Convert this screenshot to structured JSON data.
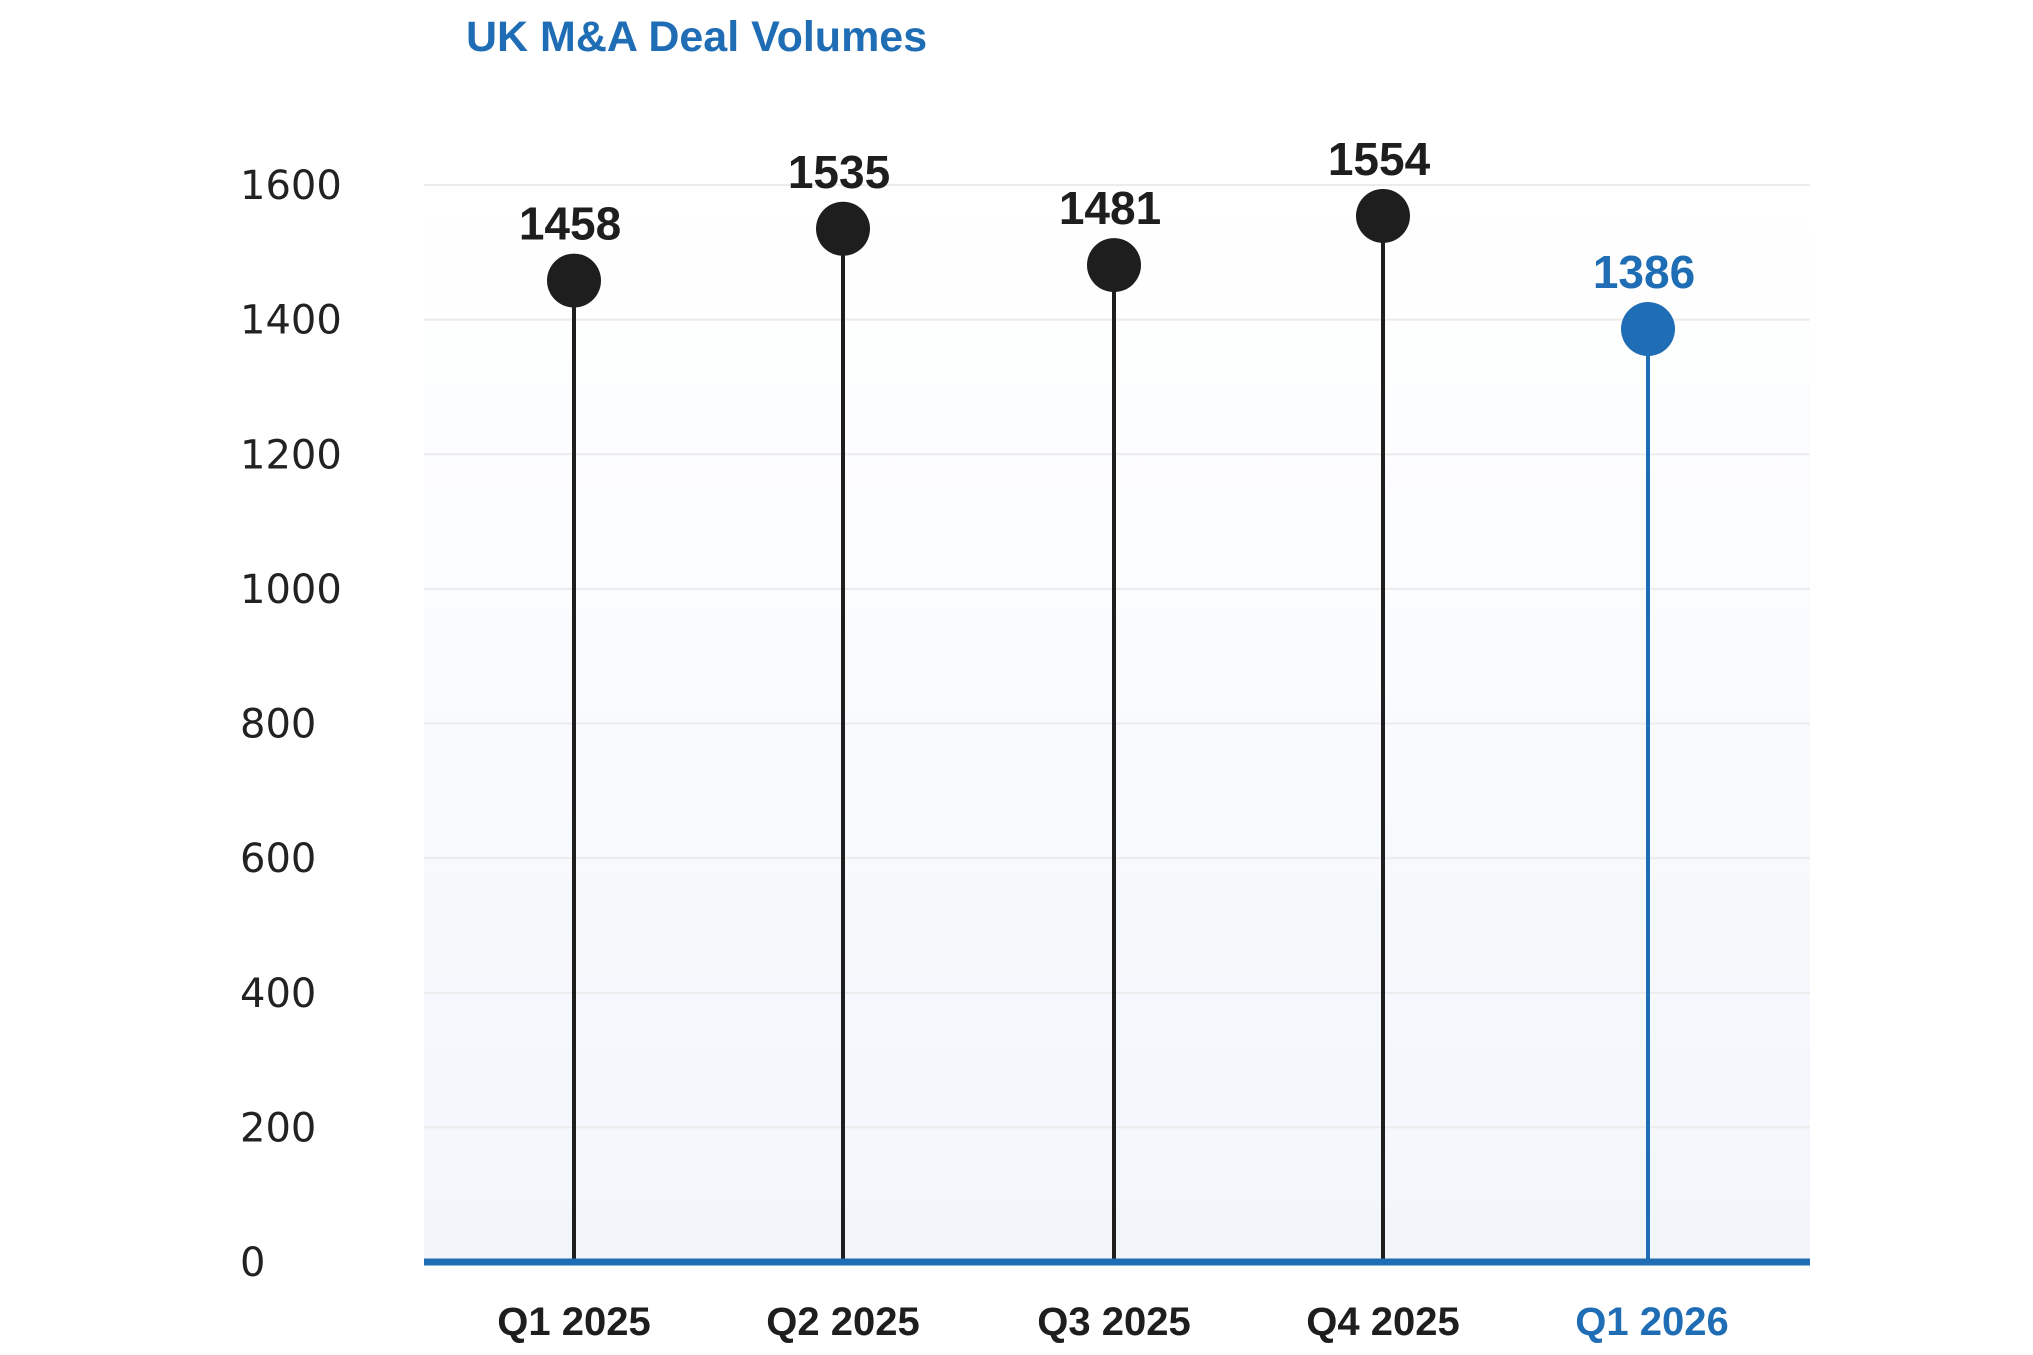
{
  "chart_data": {
    "type": "lollipop",
    "title": "UK M&A Deal Volumes",
    "xlabel": "",
    "ylabel": "",
    "categories": [
      "Q1 2025",
      "Q2 2025",
      "Q3 2025",
      "Q4 2025",
      "Q1 2026"
    ],
    "values": [
      1458,
      1535,
      1481,
      1554,
      1386
    ],
    "ylim": [
      0,
      1600
    ],
    "yticks": [
      0,
      200,
      400,
      600,
      800,
      1000,
      1200,
      1400,
      1600
    ],
    "grid": true,
    "highlight_category": "Q1 2026",
    "colors": {
      "title": "#1f6db4",
      "default_mark": "#1e1e1e",
      "highlight_mark": "#1f6db4",
      "baseline": "#1f6db4",
      "gridline": "#ececec",
      "tick_text": "#222222",
      "plot_bg_top": "#ffffff",
      "plot_bg_bottom": "#f2f6fb"
    }
  }
}
